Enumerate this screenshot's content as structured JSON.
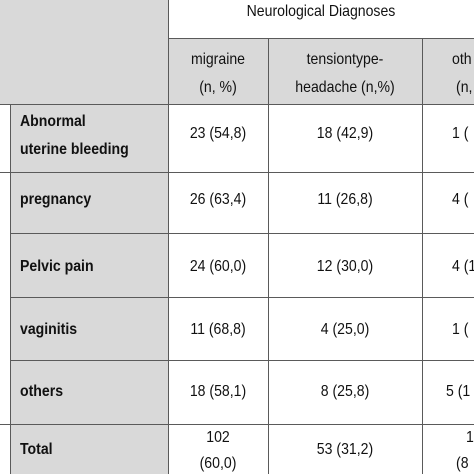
{
  "table": {
    "group_header": "Neurological Diagnoses",
    "columns": [
      {
        "line1": "migraine",
        "line2": "(n, %)"
      },
      {
        "line1": "tensiontype-",
        "line2": "headache (n,%)"
      },
      {
        "line1": "oth",
        "line2": "(n,"
      }
    ],
    "rows": [
      {
        "label1": "Abnormal",
        "label2": "uterine bleeding",
        "c1": "23 (54,8)",
        "c2": "18 (42,9)",
        "c3": "1 ("
      },
      {
        "label1": "pregnancy",
        "label2": "",
        "c1": "26 (63,4)",
        "c2": "11 (26,8)",
        "c3": "4 ("
      },
      {
        "label1": "Pelvic pain",
        "label2": "",
        "c1": "24 (60,0)",
        "c2": "12 (30,0)",
        "c3": "4 (1"
      },
      {
        "label1": "vaginitis",
        "label2": "",
        "c1": "11 (68,8)",
        "c2": "4 (25,0)",
        "c3": "1 ("
      },
      {
        "label1": "others",
        "label2": "",
        "c1": "18 (58,1)",
        "c2": "8 (25,8)",
        "c3": "5 (1"
      }
    ],
    "total": {
      "label": "Total",
      "c1_line1": "102",
      "c1_line2": "(60,0)",
      "c2": "53 (31,2)",
      "c3_line1": "1",
      "c3_line2": "(8"
    }
  }
}
